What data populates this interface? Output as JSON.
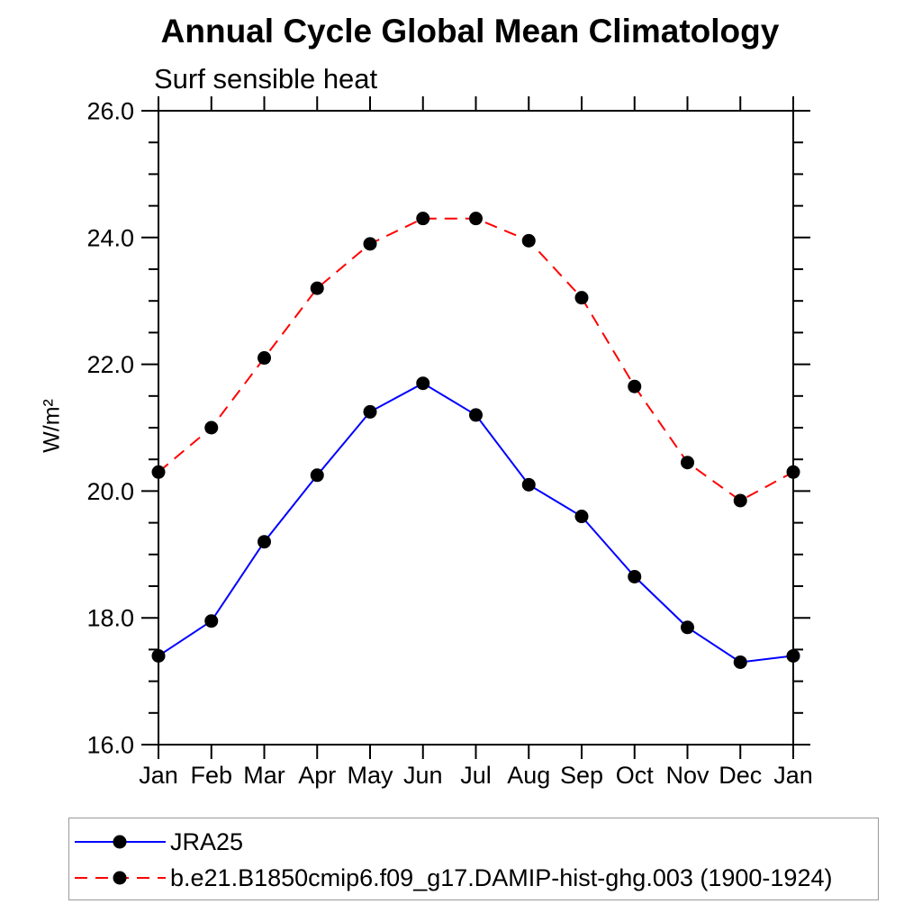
{
  "chart_data": {
    "type": "line",
    "title": "Annual Cycle Global Mean Climatology",
    "subtitle": "Surf sensible heat",
    "ylabel": "W/m²",
    "xlabel": "",
    "categories": [
      "Jan",
      "Feb",
      "Mar",
      "Apr",
      "May",
      "Jun",
      "Jul",
      "Aug",
      "Sep",
      "Oct",
      "Nov",
      "Dec",
      "Jan"
    ],
    "ylim": [
      16.0,
      26.0
    ],
    "ytick_major_values": [
      16.0,
      18.0,
      20.0,
      22.0,
      24.0,
      26.0
    ],
    "ytick_major_labels": [
      "16.0",
      "18.0",
      "20.0",
      "22.0",
      "24.0",
      "26.0"
    ],
    "ytick_minor_step": 0.5,
    "grid": false,
    "legend_position": "bottom-left-box",
    "marker": "filled-circle",
    "marker_color": "#000000",
    "axis_color": "#000000",
    "series": [
      {
        "name": "JRA25",
        "color": "#0000ff",
        "line_style": "solid",
        "values": [
          17.4,
          17.95,
          19.2,
          20.25,
          21.25,
          21.7,
          21.2,
          20.1,
          19.6,
          18.65,
          17.85,
          17.3,
          17.4
        ]
      },
      {
        "name": "b.e21.B1850cmip6.f09_g17.DAMIP-hist-ghg.003 (1900-1924)",
        "color": "#ff0000",
        "line_style": "dashed",
        "values": [
          20.3,
          21.0,
          22.1,
          23.2,
          23.9,
          24.3,
          24.3,
          23.95,
          23.05,
          21.65,
          20.45,
          19.85,
          20.3
        ]
      }
    ]
  }
}
